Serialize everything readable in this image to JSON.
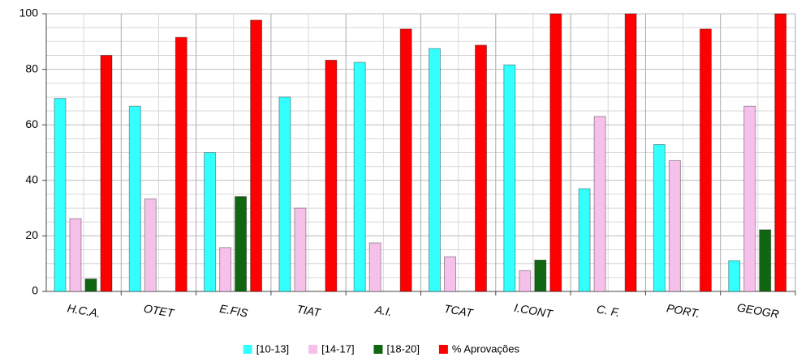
{
  "chart_data": {
    "type": "bar",
    "categories": [
      "H.C.A.",
      "OTET",
      "E.FIS",
      "TIAT",
      "A.I.",
      "TCAT",
      "I.CONT",
      "C. F.",
      "PORT.",
      "GEOGR"
    ],
    "series": [
      {
        "name": "[10-13]",
        "color": "#33ffff",
        "values": [
          69.5,
          66.7,
          50,
          70,
          82.5,
          87.5,
          81.6,
          37,
          52.9,
          11.1
        ]
      },
      {
        "name": "[14-17]",
        "color": "#f5c0ea",
        "values": [
          26.2,
          33.3,
          15.8,
          30,
          17.5,
          12.5,
          7.5,
          63,
          47.1,
          66.7
        ]
      },
      {
        "name": "[18-20]",
        "color": "#116611",
        "values": [
          4.5,
          0,
          34.2,
          0,
          0,
          0,
          11.3,
          0,
          0,
          22.2
        ]
      },
      {
        "name": "% Aprovações",
        "color": "#ff0000",
        "values": [
          85,
          91.5,
          97.7,
          83.3,
          94.5,
          88.7,
          100,
          100,
          94.5,
          100
        ]
      }
    ],
    "ylim": [
      0,
      100
    ],
    "yticks": [
      0,
      20,
      40,
      60,
      80,
      100
    ],
    "minor_yticks": [
      5,
      10,
      15,
      25,
      30,
      35,
      45,
      50,
      55,
      65,
      70,
      75,
      85,
      90,
      95
    ],
    "grid": true,
    "legend": "bottom"
  }
}
